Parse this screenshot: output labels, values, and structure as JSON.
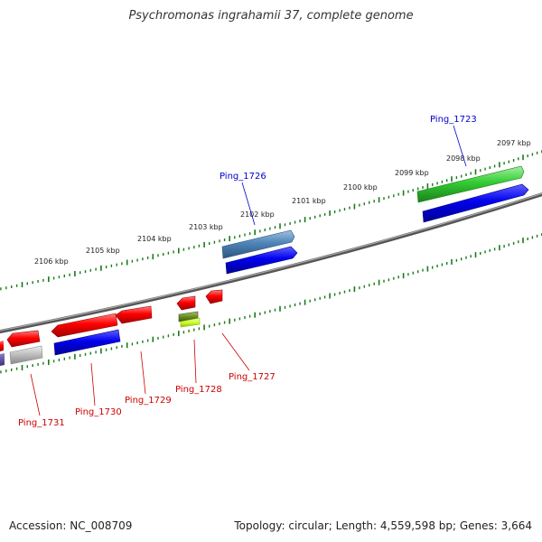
{
  "title": "Psychromonas ingrahamii 37, complete genome",
  "footer": {
    "accession": "Accession: NC_008709",
    "summary": "Topology: circular; Length: 4,559,598 bp; Genes: 3,664"
  },
  "colors": {
    "backbone": "#777777",
    "tick": "#1a7a1a",
    "gene_red": "#ff0000",
    "gene_blue": "#0000ee",
    "gene_steelblue": "#4f84b8",
    "gene_green": "#33cc33",
    "gene_grey": "#bbbbbb",
    "gene_olive": "#6b8e23",
    "gene_lime": "#ccff33",
    "label_blue": "#0000cc",
    "label_red": "#cc0000"
  },
  "scale_labels": [
    "2097 kbp",
    "2098 kbp",
    "2099 kbp",
    "2100 kbp",
    "2101 kbp",
    "2102 kbp",
    "2103 kbp",
    "2104 kbp",
    "2105 kbp",
    "2106 kbp"
  ],
  "gene_labels": [
    "Ping_1723",
    "Ping_1726",
    "Ping_1727",
    "Ping_1728",
    "Ping_1729",
    "Ping_1730",
    "Ping_1731"
  ]
}
